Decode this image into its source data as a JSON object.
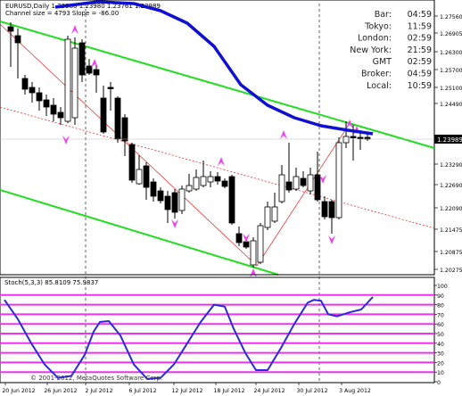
{
  "window": {
    "symbol_header": "EURUSD,Daily  1.23980 1.23980 1.23761 1.23989",
    "channel_info": "Channel size = 4793 Slope = -86.00",
    "stoch_header": "Stoch(5,3,3) 85.8109 75.9837",
    "copyright": "© 2001-2012, MetaQuotes Software Corp."
  },
  "clocks": [
    {
      "label": "Bar:",
      "value": "04:59"
    },
    {
      "label": "Tokyo:",
      "value": "11:59"
    },
    {
      "label": "London:",
      "value": "02:59"
    },
    {
      "label": "New York:",
      "value": "21:59"
    },
    {
      "label": "GMT",
      "value": "02:59"
    },
    {
      "label": "Broker:",
      "value": "04:59"
    },
    {
      "label": "Local:",
      "value": "10:59"
    }
  ],
  "price_axis": {
    "ticks": [
      "1.27560",
      "1.26905",
      "1.26300",
      "1.25700",
      "1.25100",
      "1.24490",
      "1.23290",
      "1.22690",
      "1.22090",
      "1.21475",
      "1.20875",
      "1.20275"
    ],
    "current_price_label": "1.23989"
  },
  "stoch_axis": {
    "ticks": [
      "100",
      "90",
      "80",
      "70",
      "60",
      "50",
      "40",
      "30",
      "20",
      "10",
      "0"
    ]
  },
  "time_axis": {
    "ticks": [
      "20 Jun 2012",
      "26 Jun 2012",
      "2 Jul 2012",
      "6 Jul 2012",
      "12 Jul 2012",
      "18 Jul 2012",
      "24 Jul 2012",
      "30 Jul 2012",
      "3 Aug 2012"
    ]
  },
  "colors": {
    "bull_candle": "#ffffff",
    "bear_candle": "#000000",
    "moving_average": "#1010d0",
    "channel": "#22dd22",
    "red_line": "#ee3333",
    "fractal_arrow": "#ee44ee",
    "stoch_level": "#ee33ee",
    "stoch_line": "#2a2ad8"
  }
}
